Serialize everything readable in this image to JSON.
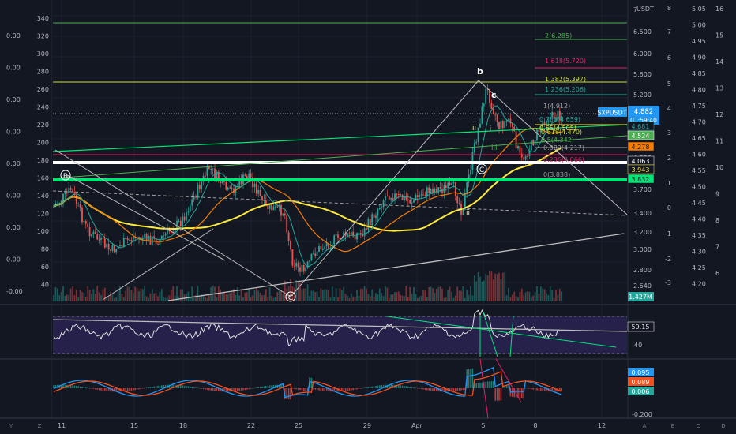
{
  "symbol": "SXPUSDT",
  "currency": "USDT",
  "price_badge": {
    "price": "4.882",
    "countdown": "01:59:40"
  },
  "right_badges": [
    {
      "text": "4.681",
      "color": "#131722",
      "fg": "#26a69a"
    },
    {
      "text": "4.524",
      "color": "#4caf50",
      "fg": "#ffffff"
    },
    {
      "text": "4.278",
      "color": "#f57c00",
      "fg": "#131722"
    },
    {
      "text": "4.063",
      "color": "#131722",
      "fg": "#ffffff"
    },
    {
      "text": "3.943",
      "color": "#131722",
      "fg": "#ffeb3b"
    },
    {
      "text": "3.832",
      "color": "#00e676",
      "fg": "#131722"
    }
  ],
  "price_axis_ticks": [
    "7",
    "6.500",
    "6.000",
    "5.600",
    "5.200",
    "4.800",
    "4.400",
    "4.000",
    "3.700",
    "3.400",
    "3.200",
    "3.000",
    "2.800",
    "2.640"
  ],
  "log_axis_ticks": [
    "8",
    "7",
    "6",
    "5",
    "4",
    "3",
    "2",
    "1",
    "0",
    "-1",
    "-2",
    "-3"
  ],
  "axis_c_ticks": [
    "5.05",
    "5.00",
    "4.95",
    "4.90",
    "4.85",
    "4.80",
    "4.75",
    "4.70",
    "4.65",
    "4.60",
    "4.55",
    "4.50",
    "4.45",
    "4.40",
    "4.35",
    "4.30",
    "4.25",
    "4.20"
  ],
  "axis_d_ticks": [
    "16",
    "15",
    "14",
    "13",
    "12",
    "11",
    "10",
    "9",
    "8",
    "7",
    "6"
  ],
  "left_axis_ticks": [
    "340",
    "320",
    "300",
    "280",
    "260",
    "240",
    "220",
    "200",
    "180",
    "160",
    "140",
    "120",
    "100",
    "80",
    "60",
    "40"
  ],
  "left_axis_b_ticks": [
    "0.00",
    "0.00",
    "0.00",
    "0.00",
    "0.00",
    "0.00",
    "0.00",
    "0.00",
    "-0.00"
  ],
  "volume_badge": "1.427M",
  "rsi": {
    "value": "59.15",
    "tick": "40"
  },
  "macd": {
    "badges": [
      {
        "text": "0.095",
        "color": "#2196f3"
      },
      {
        "text": "0.089",
        "color": "#f4511e"
      },
      {
        "text": "0.006",
        "color": "#26a69a"
      }
    ],
    "tick": "-0.200"
  },
  "time_axis": [
    "11",
    "15",
    "18",
    "22",
    "25",
    "29",
    "Apr",
    "5",
    "8",
    "12"
  ],
  "corner_labels": [
    "Y",
    "Z",
    "A",
    "B",
    "C",
    "D"
  ],
  "fib_labels": [
    {
      "text": "2(6.285)",
      "color": "#4caf50"
    },
    {
      "text": "1.618(5.720)",
      "color": "#e91e63"
    },
    {
      "text": "1.382(5.397)",
      "color": "#cddc39"
    },
    {
      "text": "1.236(5.206)",
      "color": "#26a69a"
    },
    {
      "text": "1(4.912)",
      "color": "#9e9e9e"
    },
    {
      "text": "0.786(4.659)",
      "color": "#26a69a"
    },
    {
      "text": "0.65(4.505)",
      "color": "#ffeb3b"
    },
    {
      "text": "0.618(4.470)",
      "color": "#cddc39"
    },
    {
      "text": "0.5(4.342)",
      "color": "#4caf50"
    },
    {
      "text": "0.382(4.217)",
      "color": "#9e9e9e"
    },
    {
      "text": "0.236(4.066)",
      "color": "#e91e63"
    },
    {
      "text": "0(3.838)",
      "color": "#9e9e9e"
    }
  ],
  "wave_labels": [
    {
      "text": "b",
      "color": "#ffffff"
    },
    {
      "text": "c",
      "color": "#ffffff"
    },
    {
      "text": "B",
      "color": "#ffffff"
    },
    {
      "text": "C",
      "color": "#ffffff"
    },
    {
      "text": "ii",
      "color": "#ffeb3b"
    },
    {
      "text": "i",
      "color": "#4caf50"
    },
    {
      "text": "iii",
      "color": "#4caf50"
    }
  ],
  "colors": {
    "background": "#131722",
    "up": "#26a69a",
    "down": "#ef5350",
    "ma_slow": "#ffeb3b",
    "ma_mid": "#f57c00",
    "ma_fast": "#26a69a",
    "trend_green": "#00e676",
    "rsi_fill": "#2a2456",
    "rsi_line": "#e0e0e0"
  },
  "chart_data": {
    "type": "line",
    "title": "",
    "series": [
      {
        "name": "SXPUSDT",
        "x": [
          "11",
          "15",
          "18",
          "22",
          "25",
          "29",
          "Apr",
          "5",
          "8"
        ],
        "values": [
          3.46,
          3.1,
          3.58,
          3.45,
          2.72,
          3.3,
          3.63,
          4.8,
          4.88
        ]
      }
    ],
    "ylim": [
      2.64,
      7.0
    ],
    "horizontal_levels": [
      4.063,
      3.832,
      6.285,
      5.397
    ],
    "rsi_last": 59.15,
    "macd_last": [
      0.095,
      0.089,
      0.006
    ]
  }
}
